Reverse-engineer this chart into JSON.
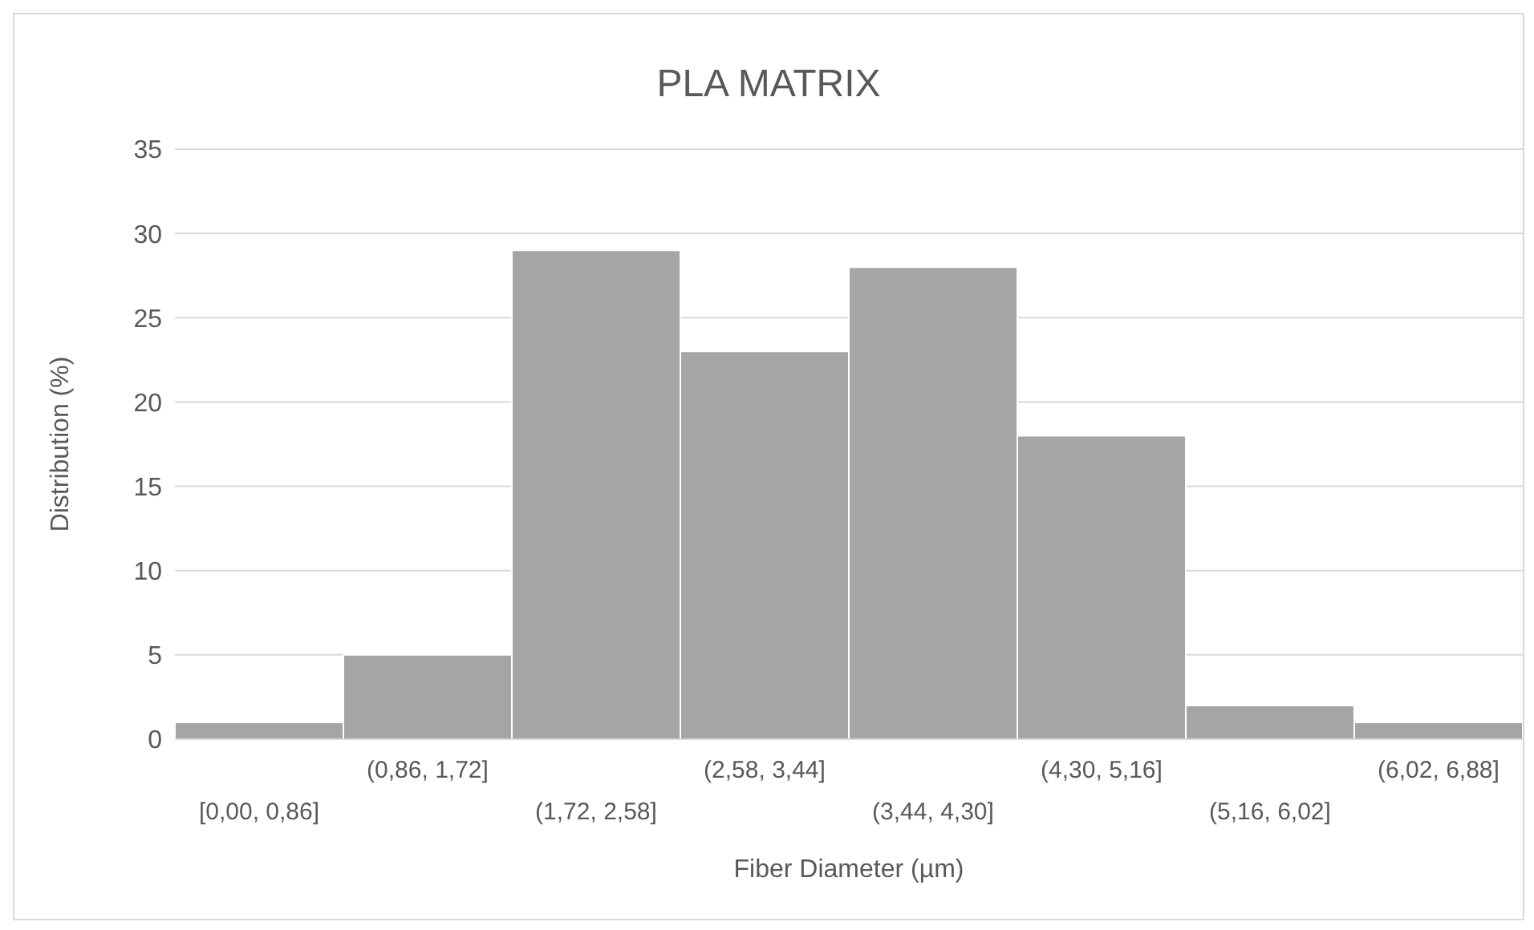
{
  "chart_data": {
    "type": "bar",
    "title": "PLA MATRIX",
    "xlabel": "Fiber Diameter (µm)",
    "ylabel": "Distribution (%)",
    "categories": [
      "[0,00, 0,86]",
      "(0,86, 1,72]",
      "(1,72, 2,58]",
      "(2,58, 3,44]",
      "(3,44, 4,30]",
      "(4,30, 5,16]",
      "(5,16, 6,02]",
      "(6,02, 6,88]"
    ],
    "values": [
      1,
      5,
      29,
      23,
      28,
      18,
      2,
      1
    ],
    "color": "#a5a5a5",
    "ylim": [
      0,
      35
    ],
    "yticks": [
      0,
      5,
      10,
      15,
      20,
      25,
      30,
      35
    ],
    "grid": "y"
  }
}
